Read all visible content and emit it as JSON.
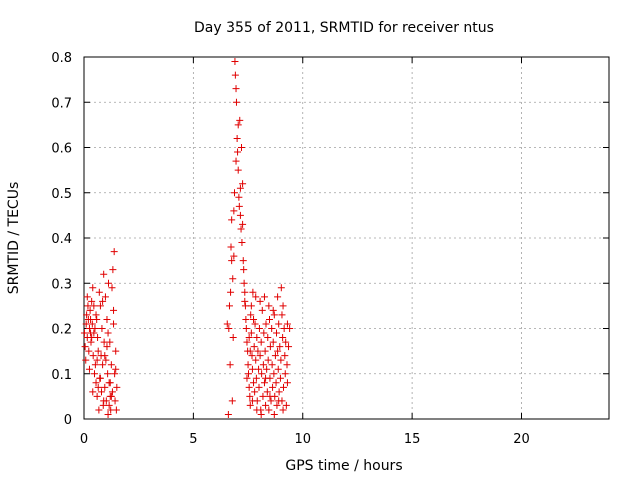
{
  "chart_data": {
    "type": "scatter",
    "title": "Day 355 of 2011, SRMTID for receiver ntus",
    "xlabel": "GPS time / hours",
    "ylabel": "SRMTID / TECUs",
    "xlim": [
      0,
      24
    ],
    "ylim": [
      0,
      0.8
    ],
    "x_ticks": [
      0,
      5,
      10,
      15,
      20
    ],
    "x_tick_labels": [
      "0",
      "5",
      "10",
      "15",
      "20"
    ],
    "y_ticks": [
      0,
      0.1,
      0.2,
      0.3,
      0.4,
      0.5,
      0.6,
      0.7,
      0.8
    ],
    "y_tick_labels": [
      "0",
      "0.1",
      "0.2",
      "0.3",
      "0.4",
      "0.5",
      "0.6",
      "0.7",
      "0.8"
    ],
    "grid": true,
    "marker": "+",
    "color": "#e00000",
    "series": [
      {
        "name": "SRMTID",
        "points": [
          [
            0.02,
            0.19
          ],
          [
            0.05,
            0.16
          ],
          [
            0.08,
            0.13
          ],
          [
            0.1,
            0.21
          ],
          [
            0.12,
            0.23
          ],
          [
            0.15,
            0.18
          ],
          [
            0.18,
            0.25
          ],
          [
            0.2,
            0.22
          ],
          [
            0.22,
            0.15
          ],
          [
            0.25,
            0.2
          ],
          [
            0.28,
            0.24
          ],
          [
            0.3,
            0.19
          ],
          [
            0.32,
            0.17
          ],
          [
            0.35,
            0.26
          ],
          [
            0.38,
            0.21
          ],
          [
            0.4,
            0.29
          ],
          [
            0.42,
            0.14
          ],
          [
            0.45,
            0.25
          ],
          [
            0.48,
            0.1
          ],
          [
            0.5,
            0.2
          ],
          [
            0.52,
            0.12
          ],
          [
            0.55,
            0.08
          ],
          [
            0.58,
            0.22
          ],
          [
            0.6,
            0.05
          ],
          [
            0.62,
            0.18
          ],
          [
            0.65,
            0.15
          ],
          [
            0.68,
            0.02
          ],
          [
            0.7,
            0.28
          ],
          [
            0.72,
            0.09
          ],
          [
            0.75,
            0.25
          ],
          [
            0.78,
            0.14
          ],
          [
            0.8,
            0.06
          ],
          [
            0.82,
            0.2
          ],
          [
            0.85,
            0.12
          ],
          [
            0.88,
            0.03
          ],
          [
            0.9,
            0.32
          ],
          [
            0.92,
            0.17
          ],
          [
            0.95,
            0.07
          ],
          [
            0.98,
            0.27
          ],
          [
            1.0,
            0.13
          ],
          [
            1.02,
            0.04
          ],
          [
            1.05,
            0.22
          ],
          [
            1.08,
            0.1
          ],
          [
            1.1,
            0.01
          ],
          [
            1.12,
            0.3
          ],
          [
            1.15,
            0.08
          ],
          [
            1.18,
            0.17
          ],
          [
            1.2,
            0.05
          ],
          [
            1.22,
            0.02
          ],
          [
            1.25,
            0.12
          ],
          [
            1.28,
            0.29
          ],
          [
            1.3,
            0.06
          ],
          [
            1.32,
            0.33
          ],
          [
            1.35,
            0.21
          ],
          [
            1.38,
            0.37
          ],
          [
            1.4,
            0.1
          ],
          [
            1.42,
            0.04
          ],
          [
            1.45,
            0.15
          ],
          [
            1.48,
            0.02
          ],
          [
            1.5,
            0.07
          ],
          [
            0.15,
            0.27
          ],
          [
            0.35,
            0.18
          ],
          [
            0.55,
            0.23
          ],
          [
            0.75,
            0.09
          ],
          [
            0.95,
            0.14
          ],
          [
            1.15,
            0.03
          ],
          [
            1.35,
            0.24
          ],
          [
            0.25,
            0.11
          ],
          [
            0.45,
            0.19
          ],
          [
            0.65,
            0.07
          ],
          [
            0.85,
            0.26
          ],
          [
            1.05,
            0.16
          ],
          [
            1.25,
            0.05
          ],
          [
            1.45,
            0.11
          ],
          [
            0.6,
            0.13
          ],
          [
            0.9,
            0.04
          ],
          [
            1.2,
            0.08
          ],
          [
            0.4,
            0.06
          ],
          [
            0.3,
            0.22
          ],
          [
            1.1,
            0.19
          ],
          [
            6.55,
            0.21
          ],
          [
            6.6,
            0.01
          ],
          [
            6.65,
            0.25
          ],
          [
            6.7,
            0.28
          ],
          [
            6.72,
            0.38
          ],
          [
            6.75,
            0.44
          ],
          [
            6.78,
            0.04
          ],
          [
            6.8,
            0.31
          ],
          [
            6.82,
            0.18
          ],
          [
            6.85,
            0.36
          ],
          [
            6.88,
            0.5
          ],
          [
            6.9,
            0.79
          ],
          [
            6.92,
            0.76
          ],
          [
            6.95,
            0.73
          ],
          [
            6.97,
            0.7
          ],
          [
            7.0,
            0.62
          ],
          [
            7.02,
            0.59
          ],
          [
            7.05,
            0.55
          ],
          [
            7.08,
            0.49
          ],
          [
            7.1,
            0.47
          ],
          [
            7.12,
            0.66
          ],
          [
            7.15,
            0.45
          ],
          [
            7.18,
            0.42
          ],
          [
            7.2,
            0.6
          ],
          [
            7.22,
            0.39
          ],
          [
            7.25,
            0.52
          ],
          [
            7.28,
            0.35
          ],
          [
            7.3,
            0.33
          ],
          [
            7.32,
            0.3
          ],
          [
            7.35,
            0.28
          ],
          [
            7.38,
            0.25
          ],
          [
            7.4,
            0.22
          ],
          [
            7.42,
            0.2
          ],
          [
            7.45,
            0.17
          ],
          [
            7.48,
            0.15
          ],
          [
            7.5,
            0.12
          ],
          [
            7.52,
            0.1
          ],
          [
            7.55,
            0.07
          ],
          [
            7.58,
            0.05
          ],
          [
            7.6,
            0.03
          ],
          [
            7.62,
            0.23
          ],
          [
            7.65,
            0.19
          ],
          [
            7.68,
            0.14
          ],
          [
            7.7,
            0.11
          ],
          [
            7.72,
            0.28
          ],
          [
            7.75,
            0.08
          ],
          [
            7.78,
            0.16
          ],
          [
            7.8,
            0.06
          ],
          [
            7.82,
            0.21
          ],
          [
            7.85,
            0.13
          ],
          [
            7.88,
            0.09
          ],
          [
            7.9,
            0.18
          ],
          [
            7.92,
            0.04
          ],
          [
            7.95,
            0.15
          ],
          [
            7.98,
            0.11
          ],
          [
            8.0,
            0.07
          ],
          [
            8.02,
            0.2
          ],
          [
            8.05,
            0.14
          ],
          [
            8.08,
            0.02
          ],
          [
            8.1,
            0.17
          ],
          [
            8.12,
            0.1
          ],
          [
            8.15,
            0.24
          ],
          [
            8.18,
            0.05
          ],
          [
            8.2,
            0.12
          ],
          [
            8.22,
            0.19
          ],
          [
            8.25,
            0.08
          ],
          [
            8.28,
            0.15
          ],
          [
            8.3,
            0.03
          ],
          [
            8.32,
            0.21
          ],
          [
            8.35,
            0.11
          ],
          [
            8.38,
            0.06
          ],
          [
            8.4,
            0.18
          ],
          [
            8.42,
            0.13
          ],
          [
            8.45,
            0.02
          ],
          [
            8.48,
            0.22
          ],
          [
            8.5,
            0.09
          ],
          [
            8.52,
            0.16
          ],
          [
            8.55,
            0.04
          ],
          [
            8.58,
            0.2
          ],
          [
            8.6,
            0.12
          ],
          [
            8.62,
            0.07
          ],
          [
            8.65,
            0.17
          ],
          [
            8.68,
            0.1
          ],
          [
            8.7,
            0.23
          ],
          [
            8.72,
            0.05
          ],
          [
            8.75,
            0.14
          ],
          [
            8.78,
            0.08
          ],
          [
            8.8,
            0.19
          ],
          [
            8.82,
            0.03
          ],
          [
            8.85,
            0.15
          ],
          [
            8.88,
            0.11
          ],
          [
            8.9,
            0.21
          ],
          [
            8.92,
            0.06
          ],
          [
            8.95,
            0.16
          ],
          [
            8.98,
            0.09
          ],
          [
            9.0,
            0.13
          ],
          [
            9.02,
            0.29
          ],
          [
            9.05,
            0.04
          ],
          [
            9.08,
            0.18
          ],
          [
            9.1,
            0.25
          ],
          [
            9.12,
            0.07
          ],
          [
            9.15,
            0.2
          ],
          [
            9.18,
            0.14
          ],
          [
            9.2,
            0.1
          ],
          [
            9.22,
            0.17
          ],
          [
            9.25,
            0.03
          ],
          [
            9.28,
            0.12
          ],
          [
            9.3,
            0.21
          ],
          [
            9.35,
            0.16
          ],
          [
            9.4,
            0.2
          ],
          [
            6.85,
            0.46
          ],
          [
            6.95,
            0.57
          ],
          [
            7.05,
            0.65
          ],
          [
            7.15,
            0.51
          ],
          [
            7.25,
            0.43
          ],
          [
            6.75,
            0.35
          ],
          [
            7.35,
            0.26
          ],
          [
            7.45,
            0.09
          ],
          [
            6.62,
            0.2
          ],
          [
            6.68,
            0.12
          ],
          [
            7.55,
            0.18
          ],
          [
            7.65,
            0.25
          ],
          [
            7.75,
            0.22
          ],
          [
            7.85,
            0.27
          ],
          [
            8.05,
            0.26
          ],
          [
            8.25,
            0.27
          ],
          [
            8.45,
            0.25
          ],
          [
            8.65,
            0.24
          ],
          [
            8.85,
            0.27
          ],
          [
            9.05,
            0.23
          ],
          [
            7.7,
            0.04
          ],
          [
            7.9,
            0.02
          ],
          [
            8.1,
            0.01
          ],
          [
            8.3,
            0.09
          ],
          [
            8.5,
            0.05
          ],
          [
            8.7,
            0.01
          ],
          [
            8.9,
            0.04
          ],
          [
            9.1,
            0.02
          ],
          [
            9.3,
            0.08
          ],
          [
            7.6,
            0.15
          ]
        ]
      }
    ]
  }
}
